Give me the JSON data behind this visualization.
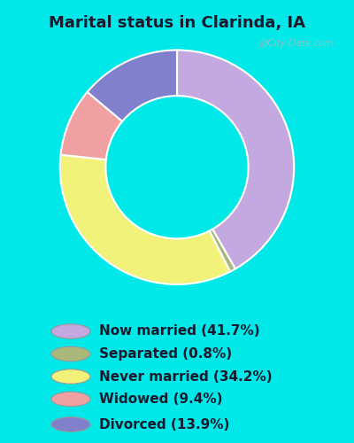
{
  "title": "Marital status in Clarinda, IA",
  "bg_outer": "#00e8e8",
  "bg_inner_color": "#d4edd4",
  "segments": [
    {
      "label": "Now married (41.7%)",
      "value": 41.7,
      "color": "#c4a8e0"
    },
    {
      "label": "Separated (0.8%)",
      "value": 0.8,
      "color": "#a8b87a"
    },
    {
      "label": "Never married (34.2%)",
      "value": 34.2,
      "color": "#f2f27a"
    },
    {
      "label": "Widowed (9.4%)",
      "value": 9.4,
      "color": "#f0a0a0"
    },
    {
      "label": "Divorced (13.9%)",
      "value": 13.9,
      "color": "#8080cc"
    }
  ],
  "watermark": "@City-Data.com",
  "title_fontsize": 13,
  "legend_fontsize": 11
}
